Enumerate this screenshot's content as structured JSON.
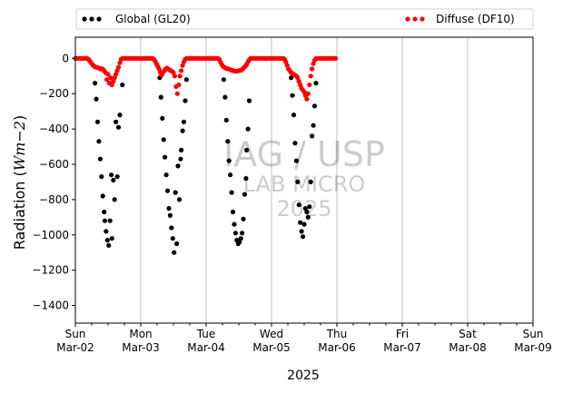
{
  "chart_data": {
    "type": "scatter",
    "title": "",
    "xlabel": "2025",
    "ylabel_prefix": "Radiation (",
    "ylabel_math": "Wm−2",
    "ylabel_suffix": ")",
    "ylim": [
      -1500,
      120
    ],
    "yticks": [
      0,
      -200,
      -400,
      -600,
      -800,
      -1000,
      -1200,
      -1400
    ],
    "xlim": [
      0,
      7
    ],
    "xticks": [
      {
        "x": 0,
        "day": "Sun",
        "date": "Mar-02"
      },
      {
        "x": 1,
        "day": "Mon",
        "date": "Mar-03"
      },
      {
        "x": 2,
        "day": "Tue",
        "date": "Mar-04"
      },
      {
        "x": 3,
        "day": "Wed",
        "date": "Mar-05"
      },
      {
        "x": 4,
        "day": "Thu",
        "date": "Mar-06"
      },
      {
        "x": 5,
        "day": "Fri",
        "date": "Mar-07"
      },
      {
        "x": 6,
        "day": "Sat",
        "date": "Mar-08"
      },
      {
        "x": 7,
        "day": "Sun",
        "date": "Mar-09"
      }
    ],
    "grid": "vertical",
    "legend_position": "top, above plot",
    "watermark": [
      "IAG / USP",
      "LAB MICRO",
      "2025"
    ],
    "series": [
      {
        "name": "Global (GL20)",
        "color": "#000000",
        "points": [
          [
            0.3,
            -140
          ],
          [
            0.32,
            -230
          ],
          [
            0.34,
            -360
          ],
          [
            0.36,
            -470
          ],
          [
            0.38,
            -570
          ],
          [
            0.4,
            -670
          ],
          [
            0.42,
            -780
          ],
          [
            0.44,
            -870
          ],
          [
            0.45,
            -920
          ],
          [
            0.47,
            -980
          ],
          [
            0.49,
            -1030
          ],
          [
            0.51,
            -1060
          ],
          [
            0.53,
            -920
          ],
          [
            0.55,
            -660
          ],
          [
            0.56,
            -1020
          ],
          [
            0.58,
            -690
          ],
          [
            0.6,
            -800
          ],
          [
            0.62,
            -360
          ],
          [
            0.64,
            -670
          ],
          [
            0.66,
            -390
          ],
          [
            0.68,
            -320
          ],
          [
            0.72,
            -150
          ],
          [
            1.29,
            -110
          ],
          [
            1.31,
            -220
          ],
          [
            1.33,
            -340
          ],
          [
            1.35,
            -460
          ],
          [
            1.37,
            -560
          ],
          [
            1.39,
            -660
          ],
          [
            1.41,
            -750
          ],
          [
            1.43,
            -850
          ],
          [
            1.45,
            -890
          ],
          [
            1.47,
            -960
          ],
          [
            1.49,
            -1020
          ],
          [
            1.51,
            -1100
          ],
          [
            1.53,
            -760
          ],
          [
            1.55,
            -1050
          ],
          [
            1.57,
            -610
          ],
          [
            1.59,
            -800
          ],
          [
            1.61,
            -570
          ],
          [
            1.62,
            -520
          ],
          [
            1.64,
            -410
          ],
          [
            1.66,
            -360
          ],
          [
            1.68,
            -240
          ],
          [
            1.7,
            -120
          ],
          [
            2.27,
            -120
          ],
          [
            2.29,
            -220
          ],
          [
            2.31,
            -350
          ],
          [
            2.33,
            -470
          ],
          [
            2.35,
            -580
          ],
          [
            2.37,
            -660
          ],
          [
            2.39,
            -760
          ],
          [
            2.41,
            -870
          ],
          [
            2.43,
            -940
          ],
          [
            2.45,
            -990
          ],
          [
            2.47,
            -1030
          ],
          [
            2.49,
            -1050
          ],
          [
            2.51,
            -1040
          ],
          [
            2.53,
            -1020
          ],
          [
            2.55,
            -990
          ],
          [
            2.57,
            -910
          ],
          [
            2.59,
            -770
          ],
          [
            2.61,
            -680
          ],
          [
            2.62,
            -520
          ],
          [
            2.64,
            -400
          ],
          [
            2.66,
            -240
          ],
          [
            3.3,
            -110
          ],
          [
            3.32,
            -210
          ],
          [
            3.34,
            -320
          ],
          [
            3.36,
            -480
          ],
          [
            3.38,
            -580
          ],
          [
            3.4,
            -700
          ],
          [
            3.42,
            -830
          ],
          [
            3.44,
            -930
          ],
          [
            3.46,
            -980
          ],
          [
            3.48,
            -1010
          ],
          [
            3.5,
            -940
          ],
          [
            3.52,
            -850
          ],
          [
            3.54,
            -870
          ],
          [
            3.56,
            -900
          ],
          [
            3.58,
            -840
          ],
          [
            3.6,
            -700
          ],
          [
            3.62,
            -440
          ],
          [
            3.64,
            -380
          ],
          [
            3.66,
            -270
          ],
          [
            3.68,
            -140
          ]
        ]
      },
      {
        "name": "Diffuse (DF10)",
        "color": "#ff0000",
        "points": [
          [
            0.0,
            0
          ],
          [
            0.02,
            0
          ],
          [
            0.04,
            0
          ],
          [
            0.06,
            0
          ],
          [
            0.08,
            0
          ],
          [
            0.1,
            0
          ],
          [
            0.12,
            0
          ],
          [
            0.14,
            0
          ],
          [
            0.16,
            0
          ],
          [
            0.18,
            0
          ],
          [
            0.2,
            -5
          ],
          [
            0.22,
            -15
          ],
          [
            0.24,
            -25
          ],
          [
            0.26,
            -35
          ],
          [
            0.28,
            -42
          ],
          [
            0.3,
            -48
          ],
          [
            0.32,
            -50
          ],
          [
            0.34,
            -52
          ],
          [
            0.36,
            -55
          ],
          [
            0.38,
            -60
          ],
          [
            0.4,
            -58
          ],
          [
            0.42,
            -62
          ],
          [
            0.44,
            -70
          ],
          [
            0.46,
            -80
          ],
          [
            0.48,
            -120
          ],
          [
            0.5,
            -90
          ],
          [
            0.52,
            -140
          ],
          [
            0.54,
            -110
          ],
          [
            0.56,
            -150
          ],
          [
            0.58,
            -130
          ],
          [
            0.6,
            -110
          ],
          [
            0.62,
            -90
          ],
          [
            0.64,
            -70
          ],
          [
            0.66,
            -50
          ],
          [
            0.68,
            -25
          ],
          [
            0.7,
            -5
          ],
          [
            0.72,
            0
          ],
          [
            0.74,
            0
          ],
          [
            0.76,
            0
          ],
          [
            0.78,
            0
          ],
          [
            0.8,
            0
          ],
          [
            0.82,
            0
          ],
          [
            0.84,
            0
          ],
          [
            0.86,
            0
          ],
          [
            0.88,
            0
          ],
          [
            0.9,
            0
          ],
          [
            0.92,
            0
          ],
          [
            0.94,
            0
          ],
          [
            0.96,
            0
          ],
          [
            0.98,
            0
          ],
          [
            1.0,
            0
          ],
          [
            1.02,
            0
          ],
          [
            1.04,
            0
          ],
          [
            1.06,
            0
          ],
          [
            1.08,
            0
          ],
          [
            1.1,
            0
          ],
          [
            1.12,
            0
          ],
          [
            1.14,
            0
          ],
          [
            1.16,
            0
          ],
          [
            1.18,
            0
          ],
          [
            1.2,
            -5
          ],
          [
            1.22,
            -15
          ],
          [
            1.24,
            -30
          ],
          [
            1.26,
            -45
          ],
          [
            1.28,
            -60
          ],
          [
            1.3,
            -80
          ],
          [
            1.32,
            -95
          ],
          [
            1.34,
            -80
          ],
          [
            1.36,
            -70
          ],
          [
            1.38,
            -60
          ],
          [
            1.4,
            -55
          ],
          [
            1.42,
            -60
          ],
          [
            1.44,
            -65
          ],
          [
            1.46,
            -70
          ],
          [
            1.48,
            -75
          ],
          [
            1.5,
            -80
          ],
          [
            1.52,
            -100
          ],
          [
            1.54,
            -160
          ],
          [
            1.56,
            -200
          ],
          [
            1.58,
            -150
          ],
          [
            1.6,
            -100
          ],
          [
            1.62,
            -70
          ],
          [
            1.64,
            -40
          ],
          [
            1.66,
            -20
          ],
          [
            1.68,
            -5
          ],
          [
            1.7,
            0
          ],
          [
            1.72,
            0
          ],
          [
            1.74,
            0
          ],
          [
            1.76,
            0
          ],
          [
            1.78,
            0
          ],
          [
            1.8,
            0
          ],
          [
            1.82,
            0
          ],
          [
            1.84,
            0
          ],
          [
            1.86,
            0
          ],
          [
            1.88,
            0
          ],
          [
            1.9,
            0
          ],
          [
            1.92,
            0
          ],
          [
            1.94,
            0
          ],
          [
            1.96,
            0
          ],
          [
            1.98,
            0
          ],
          [
            2.0,
            0
          ],
          [
            2.02,
            0
          ],
          [
            2.04,
            0
          ],
          [
            2.06,
            0
          ],
          [
            2.08,
            0
          ],
          [
            2.1,
            0
          ],
          [
            2.12,
            0
          ],
          [
            2.14,
            0
          ],
          [
            2.16,
            0
          ],
          [
            2.18,
            0
          ],
          [
            2.2,
            -5
          ],
          [
            2.22,
            -20
          ],
          [
            2.24,
            -35
          ],
          [
            2.26,
            -45
          ],
          [
            2.28,
            -50
          ],
          [
            2.3,
            -55
          ],
          [
            2.32,
            -58
          ],
          [
            2.34,
            -60
          ],
          [
            2.36,
            -62
          ],
          [
            2.38,
            -65
          ],
          [
            2.4,
            -68
          ],
          [
            2.42,
            -70
          ],
          [
            2.44,
            -72
          ],
          [
            2.46,
            -73
          ],
          [
            2.48,
            -72
          ],
          [
            2.5,
            -70
          ],
          [
            2.52,
            -68
          ],
          [
            2.54,
            -65
          ],
          [
            2.56,
            -60
          ],
          [
            2.58,
            -52
          ],
          [
            2.6,
            -45
          ],
          [
            2.62,
            -35
          ],
          [
            2.64,
            -20
          ],
          [
            2.66,
            -8
          ],
          [
            2.68,
            0
          ],
          [
            2.7,
            0
          ],
          [
            2.72,
            0
          ],
          [
            2.74,
            0
          ],
          [
            2.76,
            0
          ],
          [
            2.78,
            0
          ],
          [
            2.8,
            0
          ],
          [
            2.82,
            0
          ],
          [
            2.84,
            0
          ],
          [
            2.86,
            0
          ],
          [
            2.88,
            0
          ],
          [
            2.9,
            0
          ],
          [
            2.92,
            0
          ],
          [
            2.94,
            0
          ],
          [
            2.96,
            0
          ],
          [
            2.98,
            0
          ],
          [
            3.0,
            0
          ],
          [
            3.02,
            0
          ],
          [
            3.04,
            0
          ],
          [
            3.06,
            0
          ],
          [
            3.08,
            0
          ],
          [
            3.1,
            0
          ],
          [
            3.12,
            0
          ],
          [
            3.14,
            0
          ],
          [
            3.16,
            0
          ],
          [
            3.18,
            0
          ],
          [
            3.2,
            -5
          ],
          [
            3.22,
            -20
          ],
          [
            3.24,
            -40
          ],
          [
            3.26,
            -60
          ],
          [
            3.28,
            -70
          ],
          [
            3.3,
            -80
          ],
          [
            3.32,
            -85
          ],
          [
            3.34,
            -90
          ],
          [
            3.36,
            -95
          ],
          [
            3.38,
            -100
          ],
          [
            3.4,
            -110
          ],
          [
            3.42,
            -130
          ],
          [
            3.44,
            -150
          ],
          [
            3.46,
            -170
          ],
          [
            3.48,
            -180
          ],
          [
            3.5,
            -190
          ],
          [
            3.52,
            -210
          ],
          [
            3.54,
            -230
          ],
          [
            3.56,
            -200
          ],
          [
            3.58,
            -150
          ],
          [
            3.6,
            -100
          ],
          [
            3.62,
            -60
          ],
          [
            3.64,
            -30
          ],
          [
            3.66,
            -10
          ],
          [
            3.68,
            0
          ],
          [
            3.7,
            0
          ],
          [
            3.72,
            0
          ],
          [
            3.74,
            0
          ],
          [
            3.76,
            0
          ],
          [
            3.78,
            0
          ],
          [
            3.8,
            0
          ],
          [
            3.82,
            0
          ],
          [
            3.84,
            0
          ],
          [
            3.86,
            0
          ],
          [
            3.88,
            0
          ],
          [
            3.9,
            0
          ],
          [
            3.92,
            0
          ],
          [
            3.94,
            0
          ],
          [
            3.96,
            0
          ],
          [
            3.98,
            0
          ]
        ]
      }
    ]
  }
}
